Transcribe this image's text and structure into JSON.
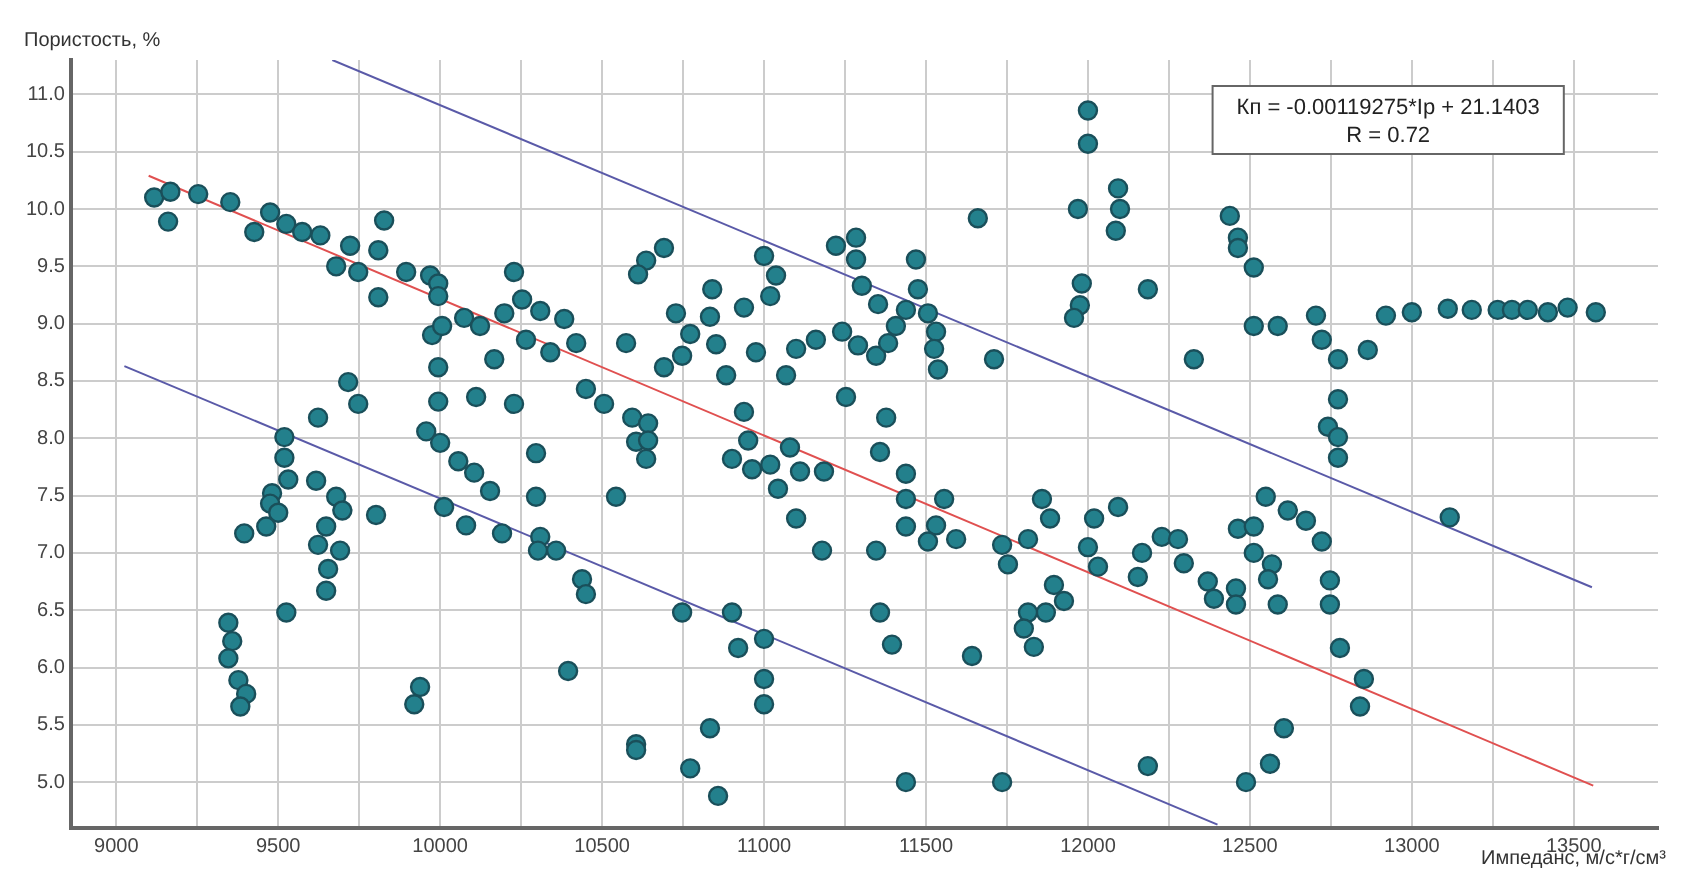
{
  "chart_data": {
    "type": "scatter",
    "ylabel": "Пористость, %",
    "xlabel": "Импеданс, м/с*г/см³",
    "annotations": [
      "Кп = -0.00119275*Iр + 21.1403",
      "R = 0.72"
    ],
    "xlim": [
      8860,
      13760
    ],
    "ylim": [
      4.6,
      11.3
    ],
    "xticks": [
      9000,
      {
        "value": 9250,
        "label": null
      },
      9500,
      {
        "value": 9750,
        "label": null
      },
      10000,
      {
        "value": 10250,
        "label": null
      },
      10500,
      {
        "value": 10750,
        "label": null
      },
      11000,
      {
        "value": 11250,
        "label": null
      },
      11500,
      {
        "value": 11750,
        "label": null
      },
      12000,
      {
        "value": 12250,
        "label": null
      },
      12500,
      {
        "value": 12750,
        "label": null
      },
      13000,
      {
        "value": 13250,
        "label": null
      },
      13500
    ],
    "yticks": [
      {
        "value": 5,
        "label": "5.0"
      },
      5.5,
      {
        "value": 6,
        "label": "6.0"
      },
      6.5,
      {
        "value": 7,
        "label": "7.0"
      },
      7.5,
      {
        "value": 8,
        "label": "8.0"
      },
      8.5,
      {
        "value": 9,
        "label": "9.0"
      },
      9.5,
      {
        "value": 10,
        "label": "10.0"
      },
      10.5,
      {
        "value": 11,
        "label": "11.0"
      }
    ],
    "grid": true,
    "legend": false,
    "marker": "circle",
    "series": [
      {
        "type": "scatter",
        "color": "#23808c",
        "x": [
          9117,
          9167,
          9160,
          9253,
          9352,
          9426,
          9475,
          9525,
          9574,
          9630,
          9679,
          9722,
          9747,
          9809,
          9827,
          9809,
          9895,
          9969,
          9994,
          9994,
          9975,
          10006,
          10074,
          10123,
          10167,
          10198,
          10228,
          10253,
          10265,
          10309,
          10340,
          10383,
          10420,
          10450,
          9994,
          9994,
          10111,
          10228,
          9716,
          9747,
          9623,
          9519,
          9957,
          10000,
          10296,
          9519,
          9531,
          9481,
          9475,
          9500,
          9463,
          9395,
          9617,
          9679,
          9698,
          9648,
          9623,
          9691,
          9654,
          9648,
          9525,
          9802,
          9346,
          9358,
          9346,
          9377,
          9401,
          9383,
          9938,
          9920,
          10056,
          10105,
          10154,
          10012,
          10080,
          10191,
          10296,
          10309,
          10302,
          10358,
          10395,
          10438,
          10450,
          12000,
          12000,
          12093,
          12099,
          12086,
          11969,
          11660,
          11981,
          11975,
          11957,
          12185,
          10691,
          10636,
          10611,
          10574,
          10728,
          10772,
          10747,
          10691,
          10840,
          10833,
          10852,
          10938,
          10883,
          10975,
          11000,
          11037,
          11019,
          11068,
          11099,
          11160,
          11222,
          11284,
          11284,
          11302,
          11352,
          11241,
          11290,
          11346,
          11383,
          11407,
          11438,
          11469,
          11475,
          11506,
          11531,
          11525,
          11537,
          11710,
          10506,
          10593,
          10642,
          10605,
          10642,
          10938,
          10951,
          11080,
          11253,
          11377,
          10636,
          10543,
          10901,
          10963,
          11019,
          11043,
          11111,
          11185,
          11099,
          11179,
          11358,
          11438,
          11438,
          11556,
          11438,
          11531,
          11506,
          11593,
          11346,
          11735,
          11815,
          11753,
          11858,
          11883,
          12019,
          12093,
          12000,
          12031,
          12167,
          12154,
          11895,
          11926,
          11870,
          11815,
          11802,
          11833,
          11642,
          11358,
          11395,
          10747,
          10901,
          10920,
          11000,
          11000,
          11000,
          10833,
          10605,
          10605,
          10772,
          10858,
          11438,
          11735,
          12185,
          12438,
          12463,
          12463,
          12512,
          12512,
          12586,
          12327,
          12704,
          12722,
          12772,
          12864,
          12920,
          13000,
          13111,
          13185,
          13265,
          13309,
          13358,
          13420,
          13481,
          13568,
          12772,
          12741,
          12772,
          12772,
          13117,
          12549,
          12617,
          12673,
          12722,
          12463,
          12512,
          12228,
          12278,
          12296,
          12512,
          12568,
          12556,
          12370,
          12389,
          12457,
          12457,
          12586,
          12747,
          12747,
          12778,
          12852,
          12840,
          12605,
          12562,
          12488
        ],
        "values": [
          10.1,
          10.15,
          9.89,
          10.13,
          10.06,
          9.8,
          9.97,
          9.87,
          9.8,
          9.77,
          9.5,
          9.68,
          9.45,
          9.64,
          9.9,
          9.23,
          9.45,
          9.42,
          9.35,
          9.24,
          8.9,
          8.98,
          9.05,
          8.98,
          8.69,
          9.09,
          9.45,
          9.21,
          8.86,
          9.11,
          8.75,
          9.04,
          8.83,
          8.43,
          8.62,
          8.32,
          8.36,
          8.3,
          8.49,
          8.3,
          8.18,
          8.01,
          8.06,
          7.96,
          7.87,
          7.83,
          7.64,
          7.52,
          7.43,
          7.35,
          7.23,
          7.17,
          7.63,
          7.49,
          7.37,
          7.23,
          7.07,
          7.02,
          6.86,
          6.67,
          6.48,
          7.33,
          6.39,
          6.23,
          6.08,
          5.89,
          5.77,
          5.66,
          5.83,
          5.68,
          7.8,
          7.7,
          7.54,
          7.4,
          7.24,
          7.17,
          7.49,
          7.14,
          7.02,
          7.02,
          5.97,
          6.77,
          6.64,
          10.86,
          10.57,
          10.18,
          10.0,
          9.81,
          10.0,
          9.92,
          9.35,
          9.16,
          9.05,
          9.3,
          9.66,
          9.55,
          9.43,
          8.83,
          9.09,
          8.91,
          8.72,
          8.62,
          9.3,
          9.06,
          8.82,
          9.14,
          8.55,
          8.75,
          9.59,
          9.42,
          9.24,
          8.55,
          8.78,
          8.86,
          9.68,
          9.75,
          9.56,
          9.33,
          9.17,
          8.93,
          8.81,
          8.72,
          8.83,
          8.98,
          9.12,
          9.56,
          9.3,
          9.09,
          8.93,
          8.78,
          8.6,
          8.69,
          8.3,
          8.18,
          8.13,
          7.97,
          7.98,
          8.23,
          7.98,
          7.92,
          8.36,
          8.18,
          7.82,
          7.49,
          7.82,
          7.73,
          7.77,
          7.56,
          7.71,
          7.71,
          7.3,
          7.02,
          7.88,
          7.69,
          7.47,
          7.47,
          7.23,
          7.24,
          7.1,
          7.12,
          7.02,
          7.07,
          7.12,
          6.9,
          7.47,
          7.3,
          7.3,
          7.4,
          7.05,
          6.88,
          7.0,
          6.79,
          6.72,
          6.58,
          6.48,
          6.48,
          6.34,
          6.18,
          6.1,
          6.48,
          6.2,
          6.48,
          6.48,
          6.17,
          6.25,
          5.9,
          5.68,
          5.47,
          5.33,
          5.28,
          5.12,
          4.88,
          5.0,
          5.0,
          5.14,
          9.94,
          9.75,
          9.66,
          9.49,
          8.98,
          8.98,
          8.69,
          9.07,
          8.86,
          8.69,
          8.77,
          9.07,
          9.1,
          9.13,
          9.12,
          9.12,
          9.12,
          9.12,
          9.1,
          9.14,
          9.1,
          8.34,
          8.1,
          8.01,
          7.83,
          7.31,
          7.49,
          7.37,
          7.28,
          7.1,
          7.21,
          7.23,
          7.14,
          7.12,
          6.91,
          7.0,
          6.9,
          6.77,
          6.75,
          6.6,
          6.69,
          6.55,
          6.55,
          6.76,
          6.55,
          6.17,
          5.9,
          5.66,
          5.47,
          5.16,
          5.0
        ]
      },
      {
        "type": "line",
        "color": "#e05050",
        "marker": "none",
        "line_style": "solid",
        "x": [
          9100,
          13560
        ],
        "values": [
          10.29,
          4.97
        ]
      },
      {
        "type": "line",
        "color": "#5a5aa8",
        "marker": "none",
        "line_style": "solid",
        "x": [
          9667,
          13556
        ],
        "values": [
          11.3,
          6.7
        ]
      },
      {
        "type": "line",
        "color": "#5a5aa8",
        "marker": "none",
        "line_style": "solid",
        "x": [
          9025,
          12400
        ],
        "values": [
          8.63,
          4.63
        ]
      }
    ]
  }
}
